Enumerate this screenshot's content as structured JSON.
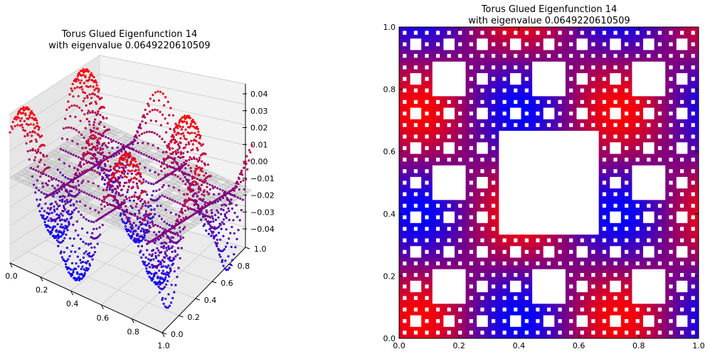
{
  "chart_data": [
    {
      "type": "scatter",
      "projection": "3d",
      "title": "Torus Glued Eigenfunction 14",
      "subtitle": "with eigenvalue 0.0649220610509",
      "x_ticks": [
        "0.0",
        "0.2",
        "0.4",
        "0.6",
        "0.8",
        "1.0"
      ],
      "y_ticks": [
        "0.0",
        "0.2",
        "0.4",
        "0.6",
        "0.8",
        "1.0"
      ],
      "z_ticks": [
        "0.04",
        "0.03",
        "0.02",
        "0.01",
        "0.00",
        "−0.01",
        "−0.02",
        "−0.03",
        "−0.04"
      ],
      "xlim": [
        0,
        1
      ],
      "ylim": [
        0,
        1
      ],
      "zlim": [
        -0.045,
        0.045
      ],
      "colormap": {
        "low": "#0000ff",
        "high": "#ff0000"
      },
      "surface": "z = 0.04 * cos(2πx·1.5)·sin(2πy·1.5) style eigenfunction sampled on Sierpinski carpet",
      "grid": true
    },
    {
      "type": "heatmap",
      "title": "Torus Glued Eigenfunction 14",
      "subtitle": "with eigenvalue 0.0649220610509",
      "x_ticks": [
        "0.0",
        "0.2",
        "0.4",
        "0.6",
        "0.8",
        "1.0"
      ],
      "y_ticks": [
        "0.0",
        "0.2",
        "0.4",
        "0.6",
        "0.8",
        "1.0"
      ],
      "xlim": [
        0,
        1
      ],
      "ylim": [
        0,
        1
      ],
      "colormap": {
        "low": "#0000ff",
        "high": "#ff0000"
      },
      "domain": "Sierpinski carpet",
      "grid": false
    }
  ]
}
